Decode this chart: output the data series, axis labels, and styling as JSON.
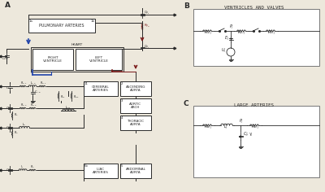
{
  "title_A": "A",
  "title_B": "B",
  "title_C": "C",
  "label_pulm": "PULMONARY ARTERIES",
  "label_heart": "HEART",
  "label_rv": "RIGHT\nVENTRICLE",
  "label_lv": "LEFT\nVENTRICLE",
  "label_cerebral": "CEREBRAL\nARTERIES",
  "label_ascending": "ASCENDING\nAORTA",
  "label_aortic": "AORTIC\nARCH",
  "label_thoracic": "THORACIC\nAORTA",
  "label_abdominal": "ABDOMINAL\nAORTA",
  "label_iliac": "ILIAC\nARTERIES",
  "label_B": "VENTRICLES AND VALVES",
  "label_C": "LARGE ARTERIES",
  "bg_color": "#ede8dc",
  "line_color": "#2a2a2a",
  "blue_color": "#2244aa",
  "red_color": "#7a1a1a",
  "text_color": "#2a2a2a"
}
